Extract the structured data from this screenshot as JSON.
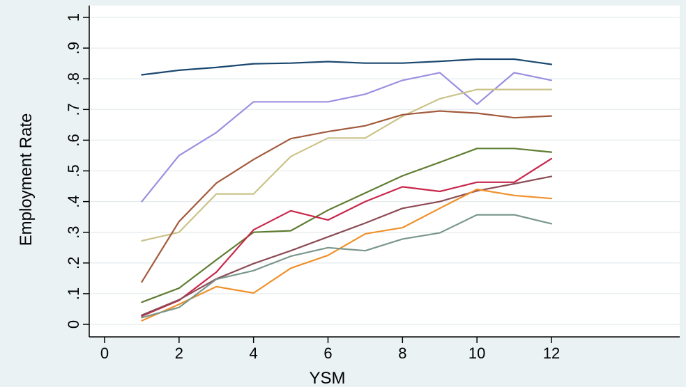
{
  "chart_data": {
    "type": "line",
    "xlabel": "YSM",
    "ylabel": "Employment Rate",
    "xlim": [
      0,
      12
    ],
    "ylim": [
      0,
      1
    ],
    "x_ticks": [
      0,
      2,
      4,
      6,
      8,
      10,
      12
    ],
    "x_tick_labels": [
      "0",
      "2",
      "4",
      "6",
      "8",
      "10",
      "12"
    ],
    "y_ticks": [
      0,
      0.1,
      0.2,
      0.3,
      0.4,
      0.5,
      0.6,
      0.7,
      0.8,
      0.9,
      1
    ],
    "y_tick_labels": [
      "0",
      ".1",
      ".2",
      ".3",
      ".4",
      ".5",
      ".6",
      ".7",
      ".8",
      ".9",
      "1"
    ],
    "grid": true,
    "legend": "none",
    "x": [
      1,
      2,
      3,
      4,
      5,
      6,
      7,
      8,
      9,
      10,
      11,
      12
    ],
    "series": [
      {
        "color": "#1a476f",
        "values": [
          0.813,
          0.828,
          0.837,
          0.849,
          0.851,
          0.856,
          0.851,
          0.851,
          0.857,
          0.864,
          0.864,
          0.847
        ]
      },
      {
        "color": "#9b8fe0",
        "values": [
          0.4,
          0.55,
          0.625,
          0.725,
          0.725,
          0.725,
          0.75,
          0.795,
          0.82,
          0.717,
          0.82,
          0.795
        ]
      },
      {
        "color": "#cbc38a",
        "values": [
          0.272,
          0.3,
          0.425,
          0.425,
          0.547,
          0.607,
          0.607,
          0.678,
          0.735,
          0.765,
          0.765,
          0.765
        ]
      },
      {
        "color": "#a25a3c",
        "values": [
          0.138,
          0.335,
          0.46,
          0.537,
          0.605,
          0.628,
          0.647,
          0.683,
          0.695,
          0.688,
          0.673,
          0.679
        ]
      },
      {
        "color": "#5f7d32",
        "values": [
          0.072,
          0.118,
          0.21,
          0.3,
          0.305,
          0.372,
          0.428,
          0.484,
          0.528,
          0.573,
          0.573,
          0.561
        ]
      },
      {
        "color": "#c8264a",
        "values": [
          0.027,
          0.078,
          0.17,
          0.308,
          0.37,
          0.34,
          0.4,
          0.448,
          0.433,
          0.463,
          0.463,
          0.54
        ]
      },
      {
        "color": "#8c4b55",
        "values": [
          0.03,
          0.08,
          0.148,
          0.198,
          0.24,
          0.285,
          0.33,
          0.378,
          0.4,
          0.435,
          0.458,
          0.482
        ]
      },
      {
        "color": "#f0902a",
        "values": [
          0.012,
          0.065,
          0.123,
          0.102,
          0.183,
          0.225,
          0.295,
          0.315,
          0.378,
          0.44,
          0.42,
          0.41
        ]
      },
      {
        "color": "#7a978b",
        "values": [
          0.022,
          0.055,
          0.147,
          0.175,
          0.222,
          0.25,
          0.24,
          0.278,
          0.298,
          0.357,
          0.357,
          0.328
        ]
      }
    ]
  }
}
